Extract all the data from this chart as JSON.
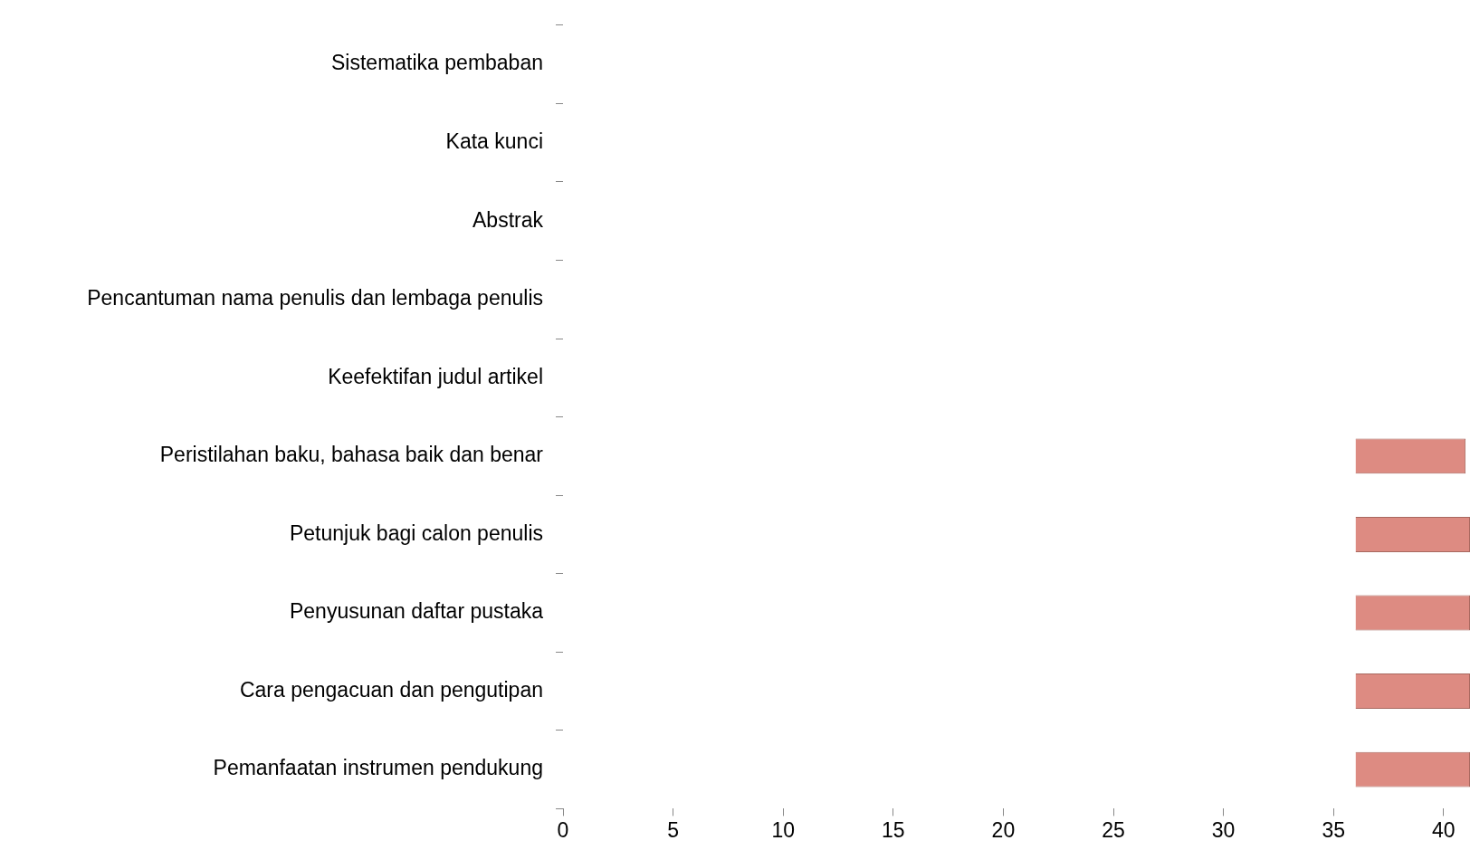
{
  "chart_data": {
    "type": "bar",
    "orientation": "horizontal",
    "categories": [
      "Sistematika pembaban",
      "Kata kunci",
      "Abstrak",
      "Pencantuman nama penulis dan lembaga penulis",
      "Keefektifan judul artikel",
      "Peristilahan baku, bahasa baik dan benar",
      "Petunjuk bagi calon penulis",
      "Penyusunan daftar pustaka",
      "Cara pengacuan dan pengutipan",
      "Pemanfaatan instrumen pendukung"
    ],
    "values": [
      null,
      null,
      null,
      null,
      null,
      5.0,
      5.2,
      5.2,
      5.2,
      5.2
    ],
    "base": [
      null,
      null,
      null,
      null,
      null,
      36,
      36,
      36,
      36,
      36
    ],
    "color": "#dd8b82",
    "xlim": [
      0,
      41.2
    ],
    "xticks": [
      0,
      5,
      10,
      15,
      20,
      25,
      30,
      35,
      40
    ],
    "grid": false,
    "legend": false
  }
}
